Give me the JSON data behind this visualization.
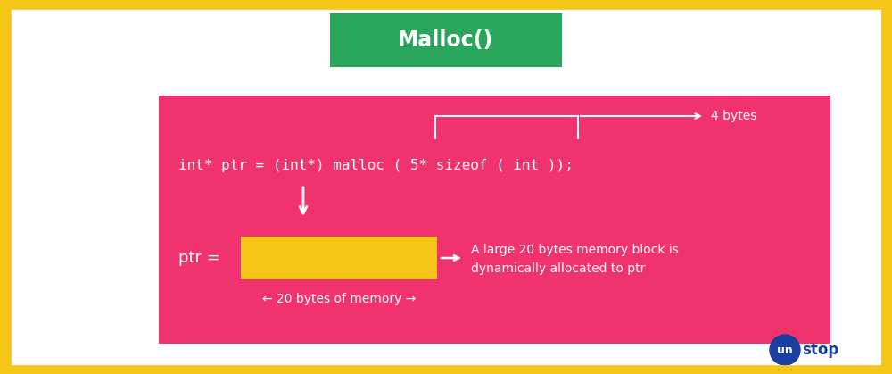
{
  "bg_color": "#ffffff",
  "border_color": "#F5C518",
  "border_lw": 12,
  "title_box_color": "#27A65C",
  "title_text": "Malloc()",
  "title_text_color": "#ffffff",
  "pink_box_color": "#F0336E",
  "code_text": "int* ptr = (int*) malloc ( 5* sizeof ( int ));",
  "code_color": "#ffffff",
  "yellow_bar_color": "#F5C518",
  "ptr_label": "ptr =",
  "ptr_color": "#ffffff",
  "annotation_line1": "A large 20 bytes memory block is",
  "annotation_line2": "dynamically allocated to ptr",
  "annotation_color": "#ffffff",
  "bytes_label": "4 bytes",
  "memory_label": "← 20 bytes of memory →",
  "unstop_circle_color": "#1a3fa0",
  "unstop_text_un_color": "#ffffff",
  "unstop_text_stop_color": "#1a3fa0"
}
